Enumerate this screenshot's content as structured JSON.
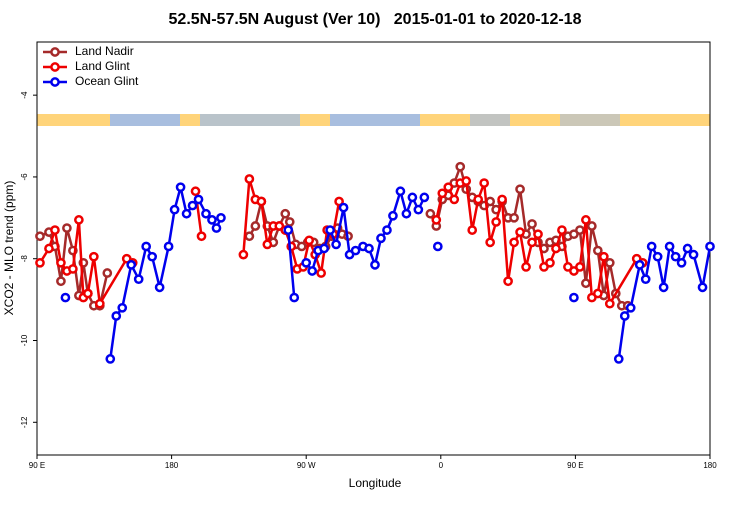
{
  "chart_data": {
    "type": "line",
    "title": "52.5N-57.5N August (Ver 10)   2015-01-01 to 2020-12-18",
    "xlabel": "Longitude",
    "ylabel": "XCO2 - MLO trend (ppm)",
    "xlim": [
      90,
      540
    ],
    "ylim": [
      -12.8,
      -2.7
    ],
    "xticks": [
      {
        "value": 90,
        "label": "90 E"
      },
      {
        "value": 180,
        "label": "180"
      },
      {
        "value": 270,
        "label": "90 W"
      },
      {
        "value": 360,
        "label": "0"
      },
      {
        "value": 450,
        "label": "90 E"
      },
      {
        "value": 540,
        "label": "180"
      }
    ],
    "yticks": [
      -4,
      -6,
      -8,
      -10,
      -12
    ],
    "legend": "upper left",
    "series": [
      {
        "name": "Land Nadir",
        "color": "#a52a2a",
        "x": [
          92,
          98,
          102,
          106,
          110,
          114,
          118,
          121,
          124,
          128,
          132,
          137,
          null,
          232,
          236,
          240,
          244,
          248,
          252,
          256,
          259,
          263,
          267,
          271,
          275,
          279,
          283,
          287,
          291,
          294,
          298,
          null,
          353,
          357,
          361,
          365,
          369,
          373,
          377,
          381,
          385,
          389,
          393,
          397,
          401,
          405,
          409,
          413,
          417,
          421,
          425,
          429,
          433,
          437,
          441,
          445,
          449,
          453,
          457,
          461,
          465,
          469,
          473,
          477,
          481,
          485
        ],
        "values": [
          -7.45,
          -7.35,
          -7.7,
          -8.55,
          -7.25,
          -7.8,
          -8.9,
          -8.1,
          -8.85,
          -9.15,
          -9.15,
          -8.35,
          null,
          -7.45,
          -7.2,
          -6.6,
          -7.2,
          -7.6,
          -7.2,
          -6.9,
          -7.1,
          -7.65,
          -7.7,
          -7.6,
          -7.6,
          -7.75,
          -7.7,
          -7.45,
          -7.25,
          -7.4,
          -7.45,
          null,
          -6.9,
          -7.2,
          -6.55,
          -6.45,
          -6.15,
          -5.75,
          -6.3,
          -6.5,
          -6.6,
          -6.7,
          -6.6,
          -6.8,
          -6.6,
          -7.0,
          -7.0,
          -6.3,
          -7.4,
          -7.15,
          -7.6,
          -7.75,
          -7.6,
          -7.55,
          -7.7,
          -7.45,
          -7.4,
          -7.3,
          -8.6,
          -7.2,
          -7.8,
          -8.9,
          -8.1,
          -8.85,
          -9.15,
          -9.15
        ]
      },
      {
        "name": "Land Glint",
        "color": "#ee0000",
        "x": [
          92,
          98,
          102,
          106,
          110,
          114,
          118,
          121,
          124,
          128,
          132,
          150,
          154,
          null,
          196,
          200,
          null,
          228,
          232,
          236,
          240,
          244,
          248,
          252,
          256,
          260,
          264,
          268,
          272,
          276,
          280,
          284,
          288,
          292,
          null,
          357,
          361,
          365,
          369,
          373,
          377,
          381,
          385,
          389,
          393,
          397,
          401,
          405,
          409,
          413,
          417,
          421,
          425,
          429,
          433,
          437,
          441,
          445,
          449,
          453,
          457,
          461,
          465,
          469,
          473,
          491,
          495
        ],
        "values": [
          -8.1,
          -7.75,
          -7.3,
          -8.1,
          -8.3,
          -8.25,
          -7.05,
          -8.95,
          -8.85,
          -7.95,
          -9.1,
          -8.0,
          -8.1,
          null,
          -6.35,
          -7.45,
          null,
          -7.9,
          -6.05,
          -6.55,
          -6.6,
          -7.65,
          -7.2,
          -7.2,
          -7.3,
          -7.7,
          -8.25,
          -8.2,
          -7.55,
          -7.9,
          -8.35,
          -7.3,
          -7.4,
          -6.6,
          null,
          -7.05,
          -6.4,
          -6.25,
          -6.55,
          -6.15,
          -6.1,
          -7.3,
          -6.55,
          -6.15,
          -7.6,
          -7.1,
          -6.55,
          -8.55,
          -7.6,
          -7.35,
          -8.2,
          -7.6,
          -7.4,
          -8.2,
          -8.1,
          -7.75,
          -7.3,
          -8.2,
          -8.3,
          -8.2,
          -7.05,
          -8.95,
          -8.85,
          -7.95,
          -9.1,
          -8.0,
          -8.1
        ]
      },
      {
        "name": "Ocean Glint",
        "color": "#0000ee",
        "x": [
          109,
          null,
          139,
          143,
          147,
          153,
          158,
          163,
          167,
          172,
          178,
          182,
          186,
          190,
          194,
          198,
          203,
          207,
          210,
          213,
          null,
          258,
          262,
          null,
          270,
          274,
          278,
          282,
          286,
          290,
          295,
          299,
          303,
          308,
          312,
          316,
          320,
          324,
          328,
          333,
          337,
          341,
          345,
          349,
          null,
          358,
          null,
          449,
          null,
          479,
          483,
          487,
          493,
          497,
          501,
          505,
          509,
          513,
          517,
          521,
          525,
          529,
          535,
          540
        ],
        "values": [
          -8.95,
          null,
          -10.45,
          -9.4,
          -9.2,
          -8.15,
          -8.5,
          -7.7,
          -7.95,
          -8.7,
          -7.7,
          -6.8,
          -6.25,
          -6.9,
          -6.7,
          -6.55,
          -6.9,
          -7.05,
          -7.25,
          -7.0,
          null,
          -7.3,
          -8.95,
          null,
          -8.1,
          -8.3,
          -7.8,
          -7.75,
          -7.3,
          -7.65,
          -6.75,
          -7.9,
          -7.8,
          -7.7,
          -7.75,
          -8.15,
          -7.5,
          -7.3,
          -6.95,
          -6.35,
          -6.9,
          -6.5,
          -6.8,
          -6.5,
          null,
          -7.7,
          null,
          -8.95,
          null,
          -10.45,
          -9.4,
          -9.2,
          -8.15,
          -8.5,
          -7.7,
          -7.95,
          -8.7,
          -7.7,
          -7.95,
          -8.1,
          -7.75,
          -7.9,
          -8.7,
          -7.7
        ]
      }
    ]
  }
}
